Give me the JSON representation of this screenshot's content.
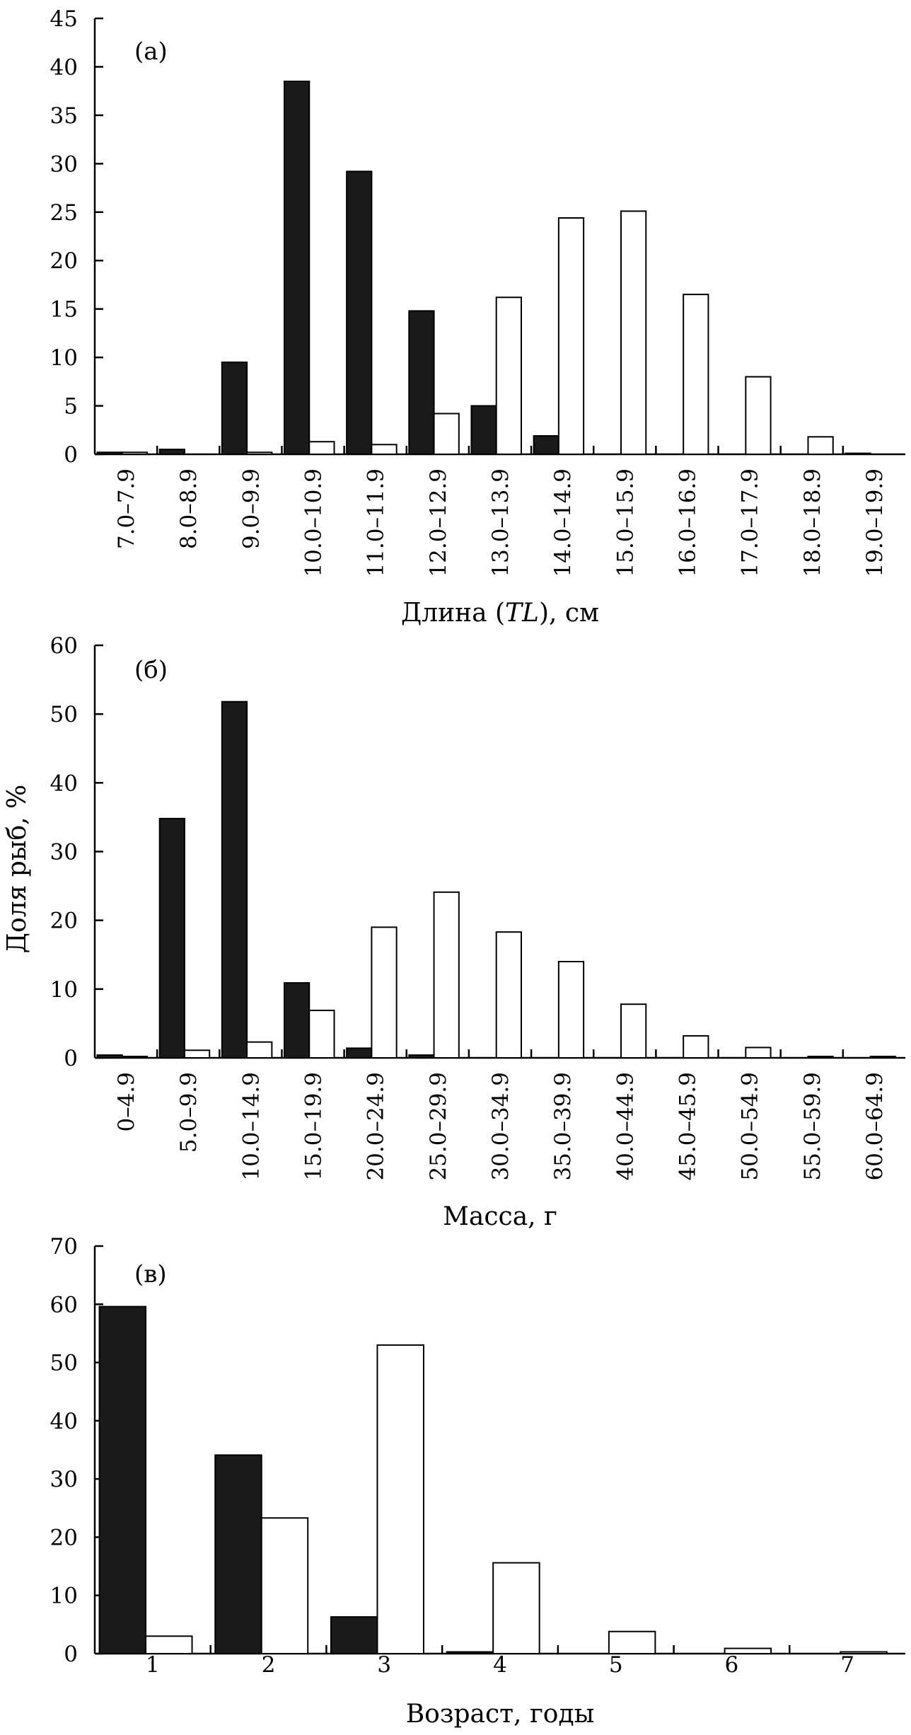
{
  "figure": {
    "ylabel": "Доля рыб, %"
  },
  "chart_data": [
    {
      "type": "bar",
      "panel_label": "(а)",
      "xlabel": "Длина (TL), см",
      "xlabel_parts": [
        "Длина (",
        "TL",
        "), см"
      ],
      "ylabel": "Доля рыб, %",
      "ylim": [
        0,
        45
      ],
      "yticks": [
        0,
        5,
        10,
        15,
        20,
        25,
        30,
        35,
        40,
        45
      ],
      "tick_rotation": "vertical",
      "categories": [
        "7.0–7.9",
        "8.0–8.9",
        "9.0–9.9",
        "10.0–10.9",
        "11.0–11.9",
        "12.0–12.9",
        "13.0–13.9",
        "14.0–14.9",
        "15.0–15.9",
        "16.0–16.9",
        "17.0–17.9",
        "18.0–18.9",
        "19.0–19.9"
      ],
      "series": [
        {
          "name": "черные столбцы",
          "color": "#1a1a1a",
          "values": [
            0.2,
            0.5,
            9.5,
            38.5,
            29.2,
            14.8,
            5.0,
            1.9,
            0,
            0,
            0,
            0,
            0.1
          ]
        },
        {
          "name": "белые столбцы",
          "color": "#ffffff",
          "values": [
            0.2,
            0,
            0.2,
            1.3,
            1.0,
            4.2,
            16.2,
            24.4,
            25.1,
            16.5,
            8.0,
            1.8,
            0
          ]
        }
      ]
    },
    {
      "type": "bar",
      "panel_label": "(б)",
      "xlabel": "Масса, г",
      "ylabel": "Доля рыб, %",
      "ylim": [
        0,
        60
      ],
      "yticks": [
        0,
        10,
        20,
        30,
        40,
        50,
        60
      ],
      "tick_rotation": "vertical",
      "categories": [
        "0–4.9",
        "5.0–9.9",
        "10.0–14.9",
        "15.0–19.9",
        "20.0–24.9",
        "25.0–29.9",
        "30.0–34.9",
        "35.0–39.9",
        "40.0–44.9",
        "45.0–45.9",
        "50.0–54.9",
        "55.0–59.9",
        "60.0–64.9"
      ],
      "series": [
        {
          "name": "черные столбцы",
          "color": "#1a1a1a",
          "values": [
            0.4,
            34.8,
            51.8,
            10.9,
            1.4,
            0.4,
            0,
            0,
            0,
            0,
            0,
            0,
            0
          ]
        },
        {
          "name": "белые столбцы",
          "color": "#ffffff",
          "values": [
            0.2,
            1.1,
            2.3,
            6.9,
            19.0,
            24.1,
            18.3,
            14.0,
            7.8,
            3.2,
            1.5,
            0.2,
            0.2
          ]
        }
      ]
    },
    {
      "type": "bar",
      "panel_label": "(в)",
      "xlabel": "Возраст, годы",
      "ylabel": "Доля рыб, %",
      "ylim": [
        0,
        70
      ],
      "yticks": [
        0,
        10,
        20,
        30,
        40,
        50,
        60,
        70
      ],
      "tick_rotation": "horizontal",
      "categories": [
        "1",
        "2",
        "3",
        "4",
        "5",
        "6",
        "7"
      ],
      "series": [
        {
          "name": "черные столбцы",
          "color": "#1a1a1a",
          "values": [
            59.6,
            34.1,
            6.3,
            0.3,
            0,
            0,
            0
          ]
        },
        {
          "name": "белые столбцы",
          "color": "#ffffff",
          "values": [
            3.0,
            23.3,
            53.0,
            15.6,
            3.8,
            0.9,
            0.3
          ]
        }
      ]
    }
  ]
}
